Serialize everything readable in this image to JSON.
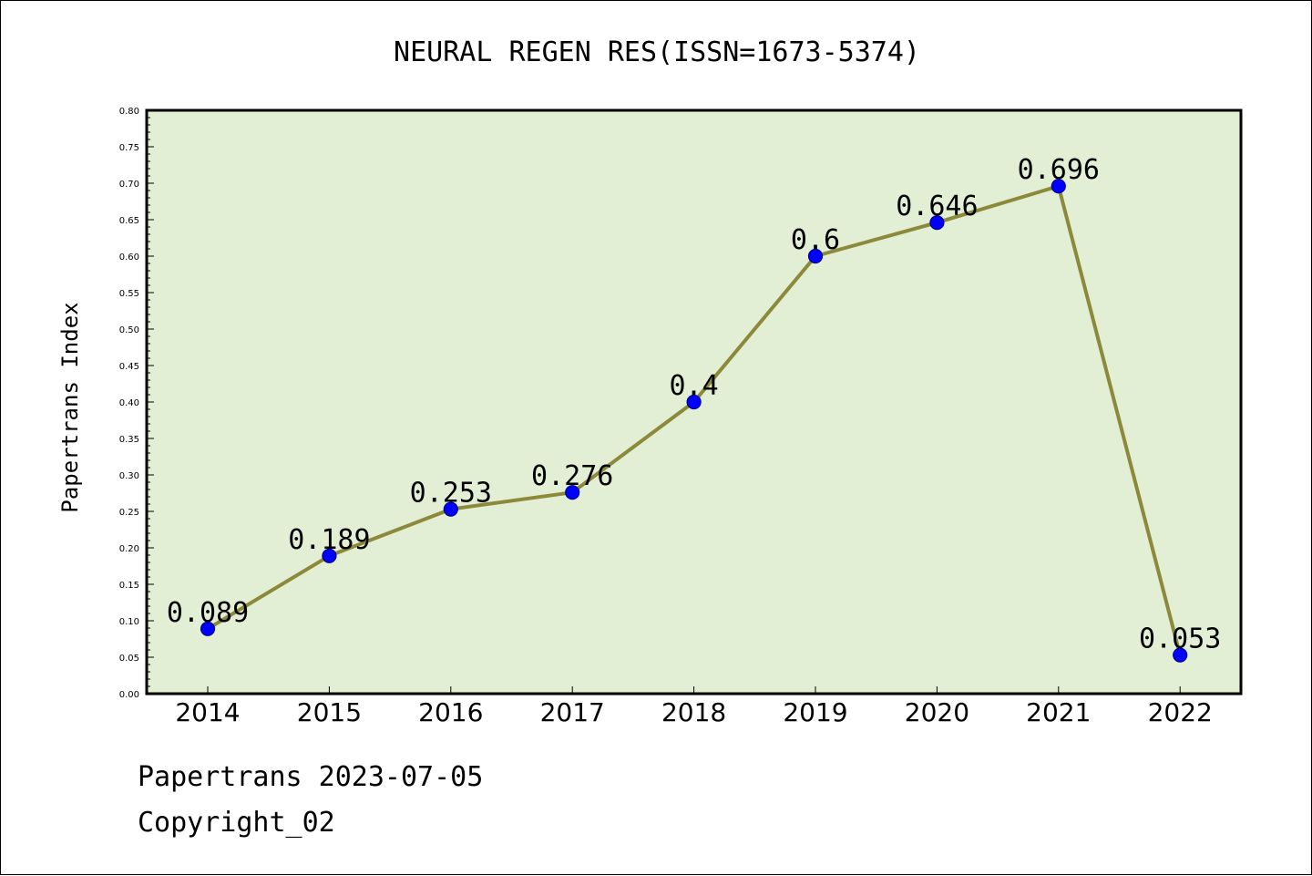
{
  "chart_data": {
    "type": "line",
    "title": "NEURAL REGEN RES(ISSN=1673-5374)",
    "xlabel": "",
    "ylabel": "Papertrans Index",
    "categories": [
      "2014",
      "2015",
      "2016",
      "2017",
      "2018",
      "2019",
      "2020",
      "2021",
      "2022"
    ],
    "values": [
      0.089,
      0.189,
      0.253,
      0.276,
      0.4,
      0.6,
      0.646,
      0.696,
      0.053
    ],
    "data_labels": [
      "0.089",
      "0.189",
      "0.253",
      "0.276",
      "0.4",
      "0.6",
      "0.646",
      "0.696",
      "0.053"
    ],
    "ylim": [
      0,
      0.8
    ],
    "y_ticks": [
      "0.00",
      "0.05",
      "0.10",
      "0.15",
      "0.20",
      "0.25",
      "0.30",
      "0.35",
      "0.40",
      "0.45",
      "0.50",
      "0.55",
      "0.60",
      "0.65",
      "0.70",
      "0.75",
      "0.80"
    ],
    "grid": false,
    "legend": "none",
    "colors": {
      "plot_background": "#e2efd5",
      "line": "#8c8a3a",
      "marker": "#0000ff",
      "marker_edge": "#00008b"
    }
  },
  "footer": {
    "line1": "Papertrans 2023-07-05",
    "line2": "Copyright_02"
  }
}
